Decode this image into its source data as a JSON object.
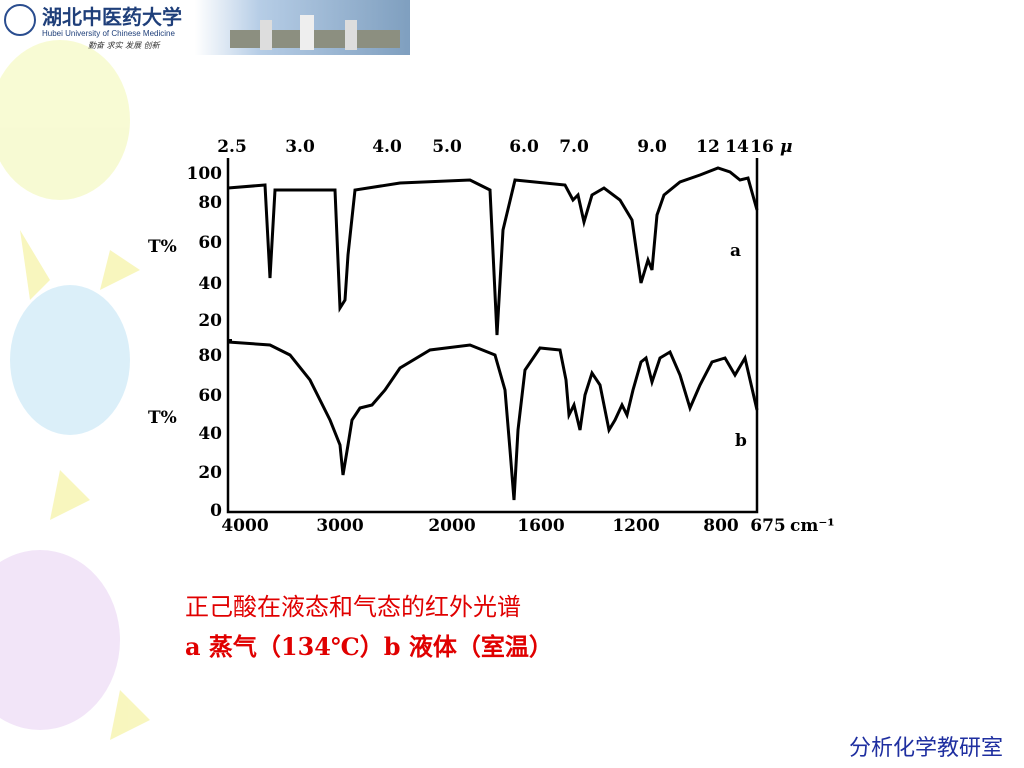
{
  "header": {
    "university": "湖北中医药大学",
    "university_en": "Hubei University of Chinese Medicine",
    "motto": "勤奋 求实 发展 创新"
  },
  "figure": {
    "top_axis": [
      "2.5",
      "3.0",
      "4.0",
      "5.0",
      "6.0",
      "7.0",
      "9.0",
      "12",
      "14",
      "16"
    ],
    "top_unit": "μ",
    "y_label": "T%",
    "y_ticks_a": [
      "100",
      "80",
      "60",
      "40",
      "20"
    ],
    "y_ticks_b": [
      "80",
      "60",
      "40",
      "20",
      "0"
    ],
    "x_axis": [
      "4000",
      "3000",
      "2000",
      "1600",
      "1200",
      "800",
      "675"
    ],
    "x_unit": "cm⁻¹",
    "label_a": "a",
    "label_b": "b"
  },
  "caption": {
    "line1": "正己酸在液态和气态的红外光谱",
    "line2": "a 蒸气（134℃）b  液体（室温）"
  },
  "footer": "分析化学教研室"
}
